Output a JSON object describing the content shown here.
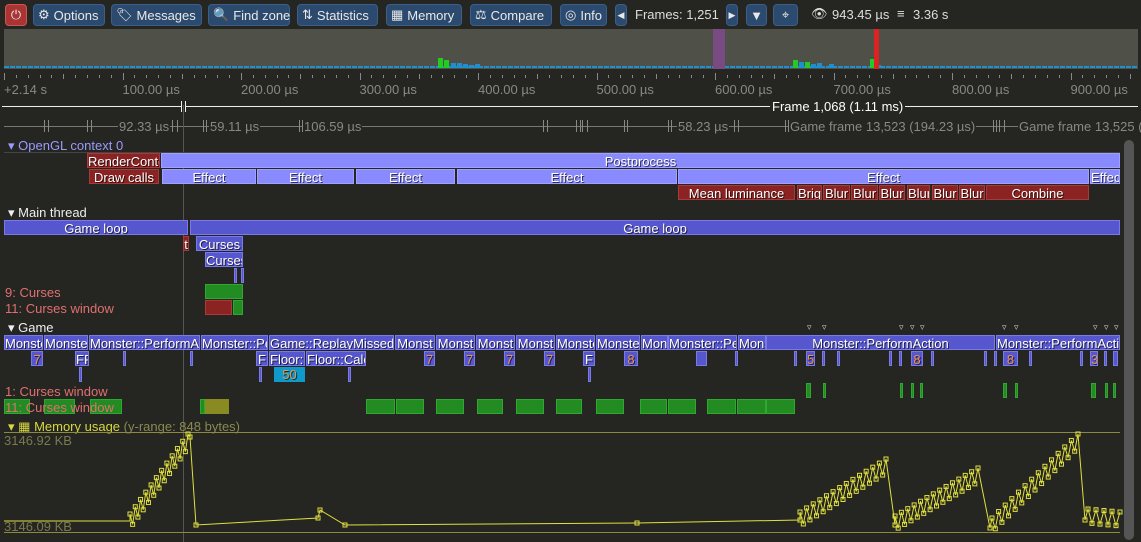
{
  "toolbar": {
    "power_icon": "power-icon",
    "buttons": [
      {
        "label": "Options",
        "icon": "gear-icon"
      },
      {
        "label": "Messages",
        "icon": "tags-icon"
      },
      {
        "label": "Find zone",
        "icon": "search-icon"
      },
      {
        "label": "Statistics",
        "icon": "sort-amount-icon"
      },
      {
        "label": "Memory",
        "icon": "memory-icon"
      },
      {
        "label": "Compare",
        "icon": "balance-scale-icon"
      },
      {
        "label": "Info",
        "icon": "fingerprint-icon"
      }
    ],
    "frames_label": "Frames: 1,251",
    "view_time": "943.45 µs",
    "total_time": "3.36 s"
  },
  "ruler": {
    "labels": [
      "+2.14 s",
      "100.00 µs",
      "200.00 µs",
      "300.00 µs",
      "400.00 µs",
      "500.00 µs",
      "600.00 µs",
      "700.00 µs",
      "800.00 µs",
      "900.00 µs"
    ]
  },
  "frame_bar": {
    "label": "Frame 1,068 (1.11 ms)"
  },
  "game_frames": {
    "labels": [
      "92.33 µs",
      "59.11 µs",
      "106.59 µs",
      "58.23 µs",
      "Game frame 13,523 (194.23 µs)",
      "Game frame 13,525 ("
    ]
  },
  "threads": {
    "opengl": {
      "name": "OpenGL context 0",
      "zones": [
        "RenderConte",
        "Postprocess",
        "Draw calls",
        "Effect",
        "Effect",
        "Effect",
        "Effect",
        "Effect",
        "Effec",
        "Mean luminance",
        "Brigh",
        "Blur",
        "Blur",
        "Blur",
        "Blur",
        "Blur",
        "Blur",
        "Combine"
      ]
    },
    "main": {
      "name": "Main thread",
      "zones": [
        "Game loop",
        "Game loop",
        "t",
        "Curses",
        "Curses",
        "",
        ""
      ],
      "locks": [
        "9: Curses",
        "11: Curses window"
      ]
    },
    "game": {
      "name": "Game",
      "zones": [
        "Monste",
        "Monste",
        "Monster::PerformA",
        "Monster::Pe",
        "Game::ReplayMissed",
        "Monst",
        "Monst",
        "Monst",
        "Monst",
        "Monste",
        "Monste",
        "Mons",
        "Monster::Pe",
        "Mons",
        "Monster::PerformAction",
        "Monster::PerformActi"
      ],
      "sub_zones": [
        "7",
        "FF",
        "F",
        "Floor::",
        "Floor::Calc",
        "7",
        "7",
        "7",
        "7",
        "F",
        "8",
        "5",
        "8",
        "8",
        "3"
      ],
      "deep_zones": [
        "50"
      ],
      "locks": [
        "1: Curses window",
        "11: Curses window"
      ]
    }
  },
  "memory": {
    "name": "Memory usage",
    "range": "(y-range: 848 bytes)",
    "max_label": "3146.92 KB",
    "min_label": "3146.09 KB",
    "color": "#e0e040"
  },
  "colors": {
    "zone": "#5656cf",
    "gpu_zone": "#8a8aff",
    "lock_wait": "#8c2323",
    "lock_held": "#228b22",
    "accent": "#2c4a6e"
  }
}
